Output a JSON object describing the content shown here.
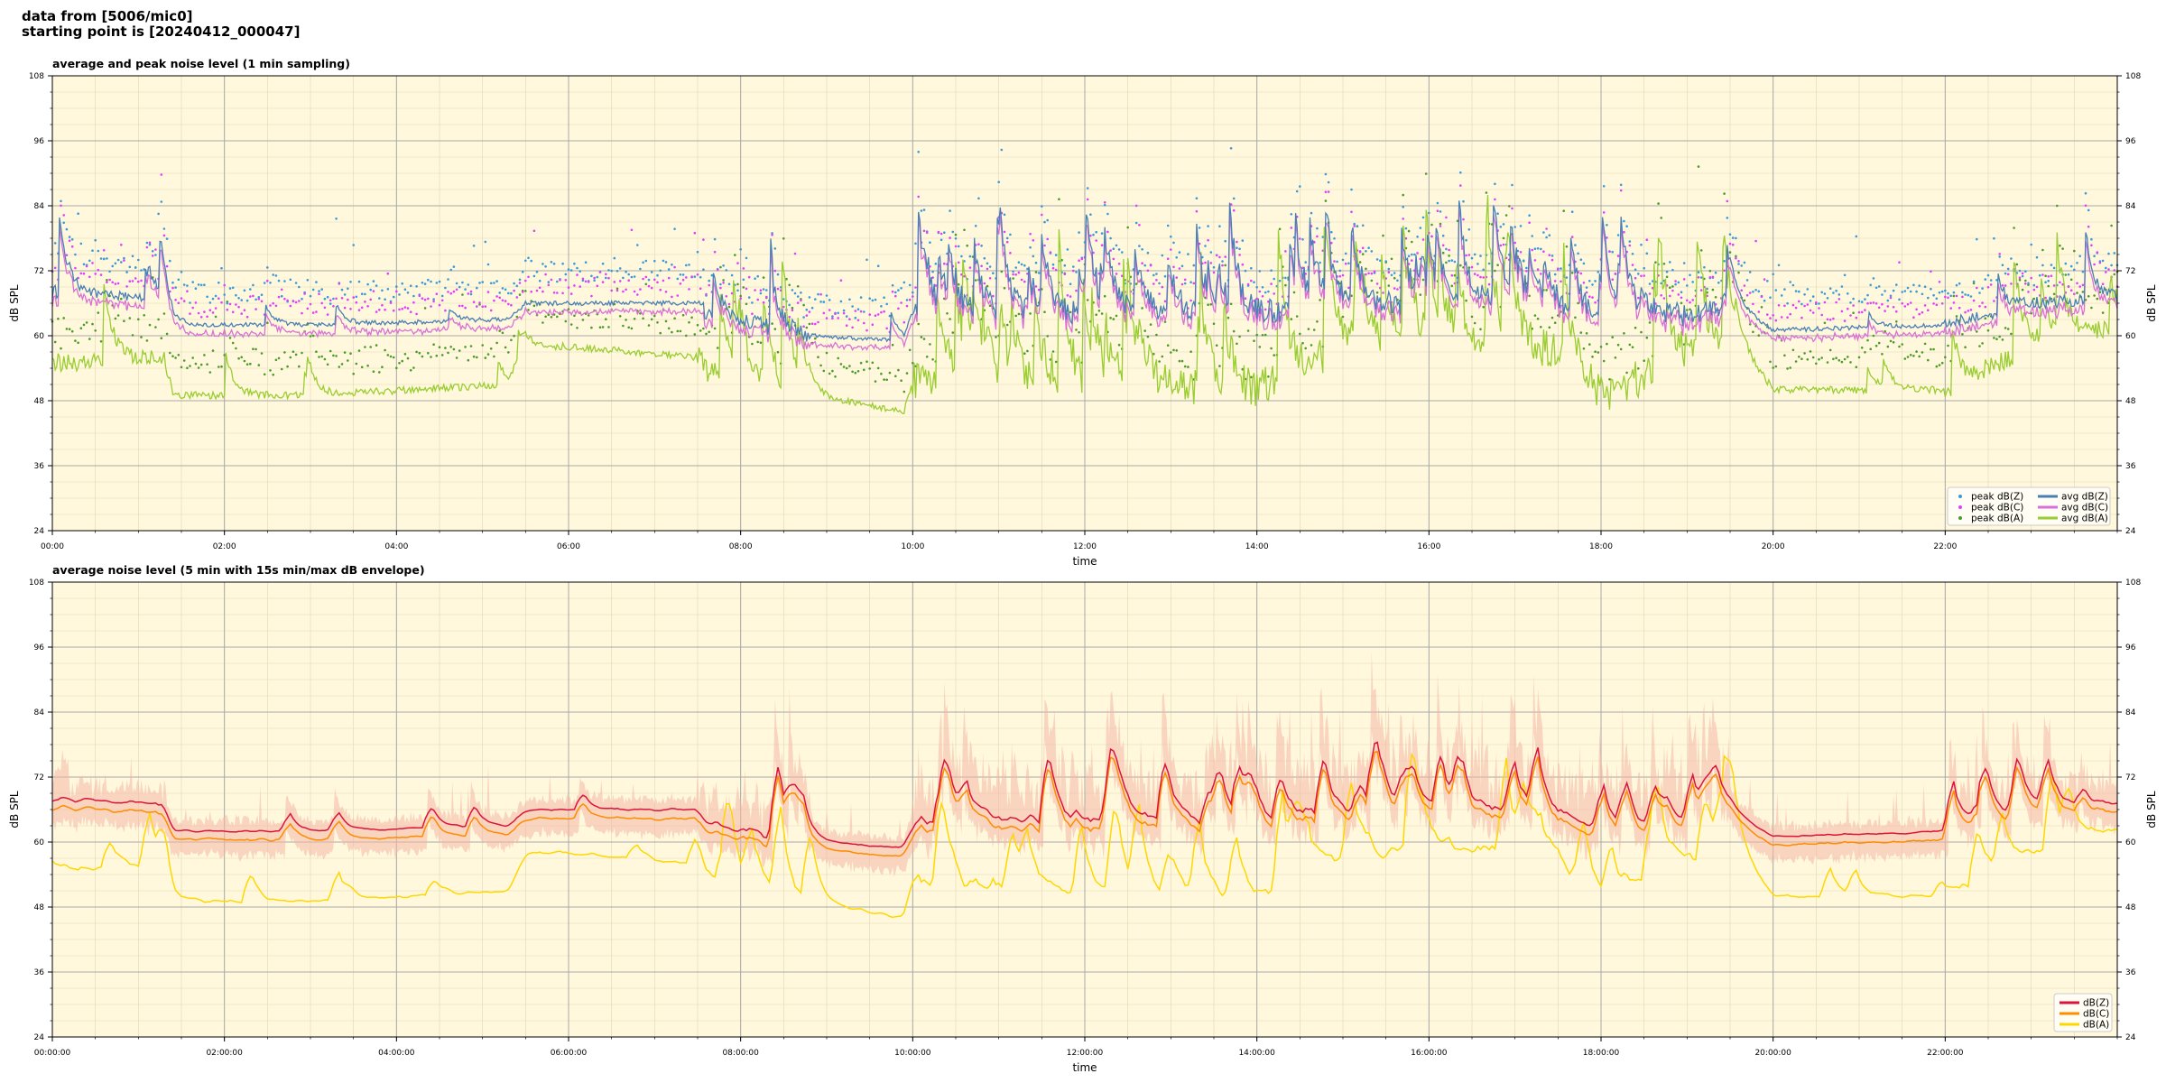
{
  "header": {
    "line1": "data from [5006/mic0]",
    "line2": "starting point is [20240412_000047]"
  },
  "colors": {
    "plot_bg": "#fff8dc",
    "zpeak": "#3a9ad9",
    "cpeak": "#e040fb",
    "apeak": "#4c9a2a",
    "zavg": "#4a7fb5",
    "cavg": "#da70d6",
    "aavg": "#9acd32",
    "dbz": "#dc143c",
    "dbc": "#ff8c00",
    "dba": "#ffd700",
    "envelope": "#f4b6a6"
  },
  "chart_data": [
    {
      "type": "line",
      "title": "average and peak noise level (1 min sampling)",
      "xlabel": "time",
      "ylabel": "dB SPL",
      "ylim": [
        24,
        108
      ],
      "xlim_hours": [
        0,
        24
      ],
      "yticks": [
        24,
        36,
        48,
        60,
        72,
        84,
        96,
        108
      ],
      "xtick_labels": [
        "00:00",
        "02:00",
        "04:00",
        "06:00",
        "08:00",
        "10:00",
        "12:00",
        "14:00",
        "16:00",
        "18:00",
        "20:00",
        "22:00"
      ],
      "grid": true,
      "legend_position": "bottom-right",
      "series_hint": {
        "hours": [
          0,
          1.3,
          1.4,
          3,
          5.3,
          5.5,
          6,
          7.5,
          7.6,
          8.8,
          9.9,
          10,
          14,
          15,
          16,
          17.5,
          18,
          19,
          19.5,
          20,
          22,
          23,
          24
        ],
        "avg_Z": [
          68,
          67,
          62,
          62,
          63,
          66,
          66,
          66,
          64,
          60,
          59,
          64,
          64,
          66,
          66,
          66,
          62,
          64,
          66,
          61,
          62,
          66,
          67
        ],
        "avg_A": [
          55,
          56,
          49,
          49,
          51,
          58,
          58,
          56,
          53,
          49,
          46,
          52,
          50,
          58,
          60,
          57,
          49,
          56,
          60,
          50,
          50,
          58,
          62
        ]
      },
      "series": [
        {
          "name": "peak dB(Z)",
          "kind": "scatter",
          "color_key": "zpeak"
        },
        {
          "name": "peak dB(C)",
          "kind": "scatter",
          "color_key": "cpeak"
        },
        {
          "name": "peak dB(A)",
          "kind": "scatter",
          "color_key": "apeak"
        },
        {
          "name": "avg dB(Z)",
          "kind": "line",
          "color_key": "zavg"
        },
        {
          "name": "avg dB(C)",
          "kind": "line",
          "color_key": "cavg"
        },
        {
          "name": "avg dB(A)",
          "kind": "line",
          "color_key": "aavg"
        }
      ]
    },
    {
      "type": "line",
      "title": "average noise level (5 min with 15s min/max dB envelope)",
      "xlabel": "time",
      "ylabel": "dB SPL",
      "ylim": [
        24,
        108
      ],
      "xlim_hours": [
        0,
        24
      ],
      "yticks": [
        24,
        36,
        48,
        60,
        72,
        84,
        96,
        108
      ],
      "xtick_labels": [
        "00:00:00",
        "02:00:00",
        "04:00:00",
        "06:00:00",
        "08:00:00",
        "10:00:00",
        "12:00:00",
        "14:00:00",
        "16:00:00",
        "18:00:00",
        "20:00:00",
        "22:00:00"
      ],
      "grid": true,
      "legend_position": "bottom-right",
      "series": [
        {
          "name": "dB(Z)",
          "kind": "line",
          "color_key": "dbz"
        },
        {
          "name": "dB(C)",
          "kind": "line",
          "color_key": "dbc"
        },
        {
          "name": "dB(A)",
          "kind": "line",
          "color_key": "dba"
        }
      ]
    }
  ]
}
